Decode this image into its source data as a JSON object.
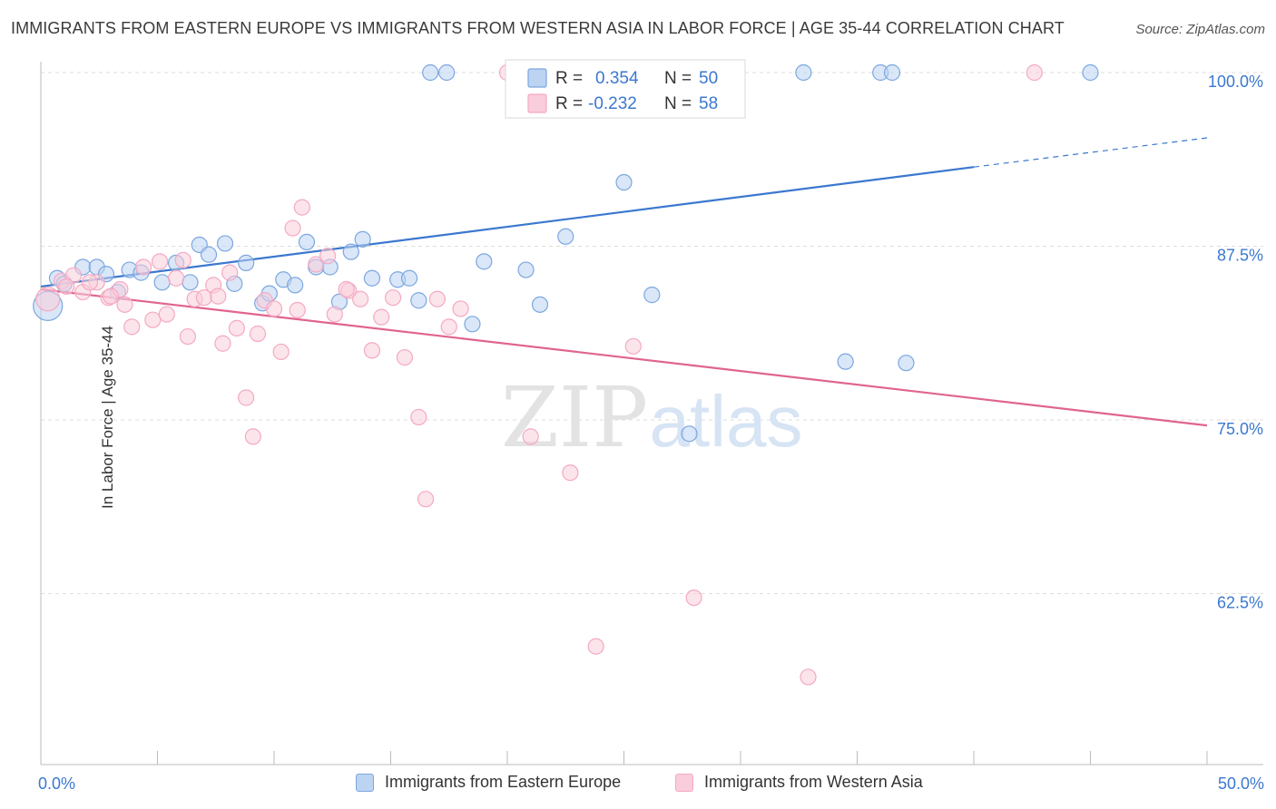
{
  "title": "IMMIGRANTS FROM EASTERN EUROPE VS IMMIGRANTS FROM WESTERN ASIA IN LABOR FORCE | AGE 35-44 CORRELATION CHART",
  "source": "Source: ZipAtlas.com",
  "watermark": {
    "zip": "ZIP",
    "atlas": "atlas"
  },
  "chart_data": {
    "type": "scatter",
    "xlabel": "",
    "ylabel": "In Labor Force | Age 35-44",
    "xlim": [
      0,
      50
    ],
    "ylim": [
      51,
      102
    ],
    "x_tick_labels": [
      "0.0%",
      "50.0%"
    ],
    "y_ticks": [
      62.5,
      75.0,
      87.5,
      100.0
    ],
    "y_tick_labels": [
      "62.5%",
      "75.0%",
      "87.5%",
      "100.0%"
    ],
    "grid": true,
    "legend": {
      "placement": "top-center",
      "rows": [
        {
          "r_label": "R = ",
          "r_value": "0.354",
          "n_label": "N = ",
          "n_value": "50"
        },
        {
          "r_label": "R = ",
          "r_value": "-0.232",
          "n_label": "N = ",
          "n_value": "58"
        }
      ]
    },
    "series": [
      {
        "name": "Immigrants from Eastern Europe",
        "color": "#7ba7e0",
        "line_color": "#3b78cf",
        "trend": {
          "x0": 0,
          "y0": 84.6,
          "x1": 40,
          "y1": 93.2,
          "dash_x1": 50,
          "dash_y1": 95.3
        },
        "points": [
          [
            0.3,
            83.2
          ],
          [
            0.7,
            85.2
          ],
          [
            1.0,
            84.8
          ],
          [
            1.8,
            86.0
          ],
          [
            2.4,
            86.0
          ],
          [
            2.8,
            85.5
          ],
          [
            3.3,
            84.2
          ],
          [
            3.8,
            85.8
          ],
          [
            4.3,
            85.6
          ],
          [
            5.2,
            84.9
          ],
          [
            5.8,
            86.3
          ],
          [
            6.4,
            84.9
          ],
          [
            6.8,
            87.6
          ],
          [
            7.2,
            86.9
          ],
          [
            7.9,
            87.7
          ],
          [
            8.3,
            84.8
          ],
          [
            8.8,
            86.3
          ],
          [
            9.5,
            83.4
          ],
          [
            9.8,
            84.1
          ],
          [
            10.4,
            85.1
          ],
          [
            10.9,
            84.7
          ],
          [
            11.4,
            87.8
          ],
          [
            11.8,
            86.0
          ],
          [
            12.4,
            86.0
          ],
          [
            12.8,
            83.5
          ],
          [
            13.3,
            87.1
          ],
          [
            13.8,
            88.0
          ],
          [
            14.2,
            85.2
          ],
          [
            15.3,
            85.1
          ],
          [
            15.8,
            85.2
          ],
          [
            16.2,
            83.6
          ],
          [
            16.7,
            100.0
          ],
          [
            17.4,
            100.0
          ],
          [
            18.5,
            81.9
          ],
          [
            19.0,
            86.4
          ],
          [
            20.8,
            85.8
          ],
          [
            21.4,
            83.3
          ],
          [
            22.5,
            88.2
          ],
          [
            24.1,
            100.0
          ],
          [
            25.0,
            92.1
          ],
          [
            25.5,
            100.0
          ],
          [
            26.2,
            84.0
          ],
          [
            27.8,
            74.0
          ],
          [
            29.5,
            100.0
          ],
          [
            32.7,
            100.0
          ],
          [
            34.5,
            79.2
          ],
          [
            36.0,
            100.0
          ],
          [
            36.5,
            100.0
          ],
          [
            37.1,
            79.1
          ],
          [
            45.0,
            100.0
          ]
        ]
      },
      {
        "name": "Immigrants from Western Asia",
        "color": "#f4a9c2",
        "line_color": "#e0648f",
        "trend": {
          "x0": 0,
          "y0": 84.4,
          "x1": 50,
          "y1": 74.6
        },
        "points": [
          [
            0.3,
            83.7
          ],
          [
            0.9,
            85.0
          ],
          [
            1.4,
            85.4
          ],
          [
            1.8,
            84.2
          ],
          [
            2.4,
            84.9
          ],
          [
            2.9,
            83.8
          ],
          [
            3.4,
            84.4
          ],
          [
            3.6,
            83.3
          ],
          [
            3.9,
            81.7
          ],
          [
            4.4,
            86.0
          ],
          [
            4.8,
            82.2
          ],
          [
            5.1,
            86.4
          ],
          [
            5.4,
            82.6
          ],
          [
            5.8,
            85.2
          ],
          [
            6.1,
            86.5
          ],
          [
            6.3,
            81.0
          ],
          [
            6.6,
            83.7
          ],
          [
            7.0,
            83.8
          ],
          [
            7.4,
            84.7
          ],
          [
            7.8,
            80.5
          ],
          [
            8.1,
            85.6
          ],
          [
            8.4,
            81.6
          ],
          [
            8.8,
            76.6
          ],
          [
            9.1,
            73.8
          ],
          [
            9.3,
            81.2
          ],
          [
            9.6,
            83.6
          ],
          [
            10.0,
            83.0
          ],
          [
            10.3,
            79.9
          ],
          [
            10.8,
            88.8
          ],
          [
            11.2,
            90.3
          ],
          [
            11.8,
            86.2
          ],
          [
            12.3,
            86.8
          ],
          [
            12.6,
            82.6
          ],
          [
            13.2,
            84.3
          ],
          [
            13.7,
            83.7
          ],
          [
            14.2,
            80.0
          ],
          [
            14.6,
            82.4
          ],
          [
            15.1,
            83.8
          ],
          [
            15.6,
            79.5
          ],
          [
            16.2,
            75.2
          ],
          [
            16.5,
            69.3
          ],
          [
            17.0,
            83.7
          ],
          [
            17.5,
            81.7
          ],
          [
            18.0,
            83.0
          ],
          [
            20.0,
            100.0
          ],
          [
            21.0,
            73.8
          ],
          [
            22.7,
            71.2
          ],
          [
            23.8,
            58.7
          ],
          [
            25.4,
            80.3
          ],
          [
            28.0,
            62.2
          ],
          [
            32.9,
            56.5
          ],
          [
            42.6,
            100.0
          ],
          [
            1.1,
            84.6
          ],
          [
            2.1,
            84.9
          ],
          [
            11.0,
            82.9
          ],
          [
            13.1,
            84.4
          ],
          [
            3.0,
            83.9
          ],
          [
            7.6,
            83.9
          ]
        ]
      }
    ]
  }
}
